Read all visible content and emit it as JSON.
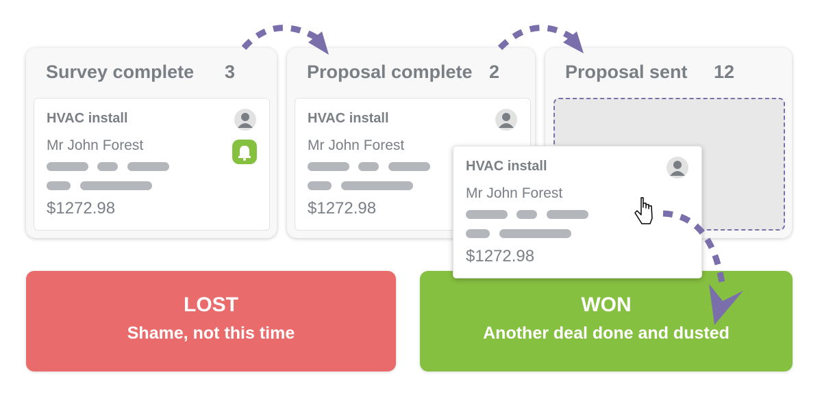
{
  "columns": [
    {
      "title": "Survey complete",
      "count": "3"
    },
    {
      "title": "Proposal complete",
      "count": "2"
    },
    {
      "title": "Proposal sent",
      "count": "12"
    }
  ],
  "card": {
    "title": "HVAC install",
    "customer": "Mr John Forest",
    "amount": "$1272.98"
  },
  "lost": {
    "title": "LOST",
    "subtitle": "Shame, not this time"
  },
  "won": {
    "title": "WON",
    "subtitle": "Another deal done and dusted"
  },
  "colors": {
    "text": "#7a7f85",
    "accent": "#7a6fab",
    "lost": "#ea6b6b",
    "won": "#86c040",
    "placeholder": "#b3b7bb"
  },
  "icons": [
    "user-avatar-icon",
    "bell-icon",
    "hand-pointer-cursor-icon",
    "dashed-arrow-icon"
  ]
}
